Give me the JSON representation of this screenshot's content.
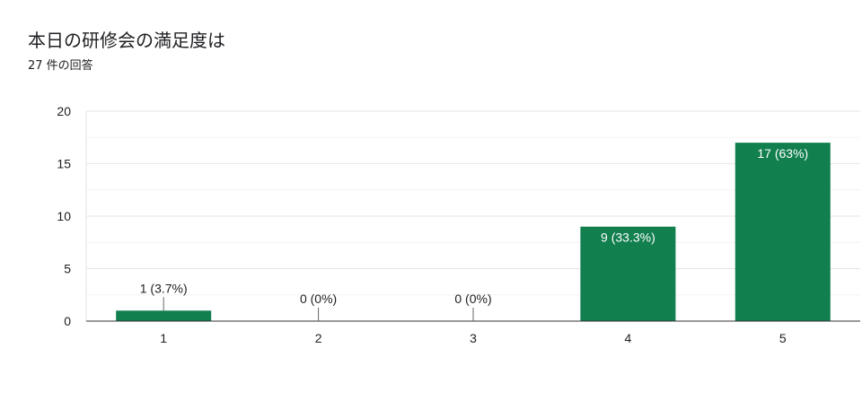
{
  "question": {
    "title": "本日の研修会の満足度は",
    "response_count": "27 件の回答"
  },
  "colors": {
    "bar": "#127f4f",
    "grid": "#e8e8e8",
    "axis": "#333333",
    "text": "#202124"
  },
  "chart_data": {
    "type": "bar",
    "title": "本日の研修会の満足度は",
    "categories": [
      "1",
      "2",
      "3",
      "4",
      "5"
    ],
    "values": [
      1,
      0,
      0,
      9,
      17
    ],
    "data_labels": [
      "1 (3.7%)",
      "0 (0%)",
      "0 (0%)",
      "9 (33.3%)",
      "17 (63%)"
    ],
    "xlabel": "",
    "ylabel": "",
    "ylim": [
      0,
      20
    ],
    "yticks": [
      0,
      5,
      10,
      15,
      20
    ],
    "grid": true,
    "legend": "none"
  }
}
